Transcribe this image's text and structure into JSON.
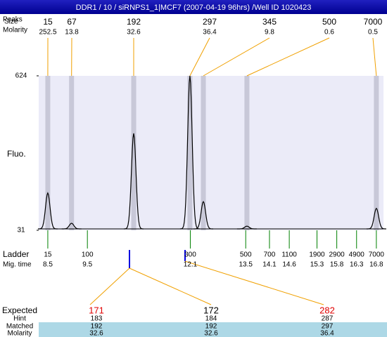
{
  "title": "DDR1 / 10 / siRNPS1_1|MCF7 (2007-04-19 96hrs) /Well ID 1020423",
  "row_labels": {
    "peaks": "Peaks",
    "size": "Size",
    "molarity": "Molarity",
    "fluo": "Fluo.",
    "ladder": "Ladder",
    "mig_time": "Mig. time"
  },
  "chart_data": {
    "type": "electropherogram",
    "ylim": [
      31,
      624
    ],
    "yticks": [
      31,
      624
    ],
    "xlim": [
      8.27,
      16.98
    ],
    "trace_color": "#000000",
    "band_color": "#c8c8d8",
    "line_color": "#f0a000",
    "ladder_color": "#008000",
    "plot_bg": "#ebebf8",
    "peaks": {
      "size": [
        15,
        67,
        192,
        297,
        345,
        500,
        7000
      ],
      "molarity": [
        252.5,
        13.8,
        32.6,
        36.4,
        9.8,
        0.6,
        0.5
      ],
      "mig_time": [
        8.5,
        9.1,
        10.67,
        12.09,
        12.43,
        13.53,
        16.8
      ],
      "fluo": [
        174,
        58,
        403,
        624,
        141,
        47,
        115
      ]
    },
    "ladder": {
      "size": [
        15,
        100,
        300,
        500,
        700,
        1100,
        1900,
        2900,
        4900,
        7000
      ],
      "mig_time": [
        8.5,
        9.5,
        12.1,
        13.5,
        14.1,
        14.6,
        15.3,
        15.8,
        16.3,
        16.8
      ]
    }
  },
  "expected_table": {
    "labels": {
      "expected": "Expected",
      "hint": "Hint",
      "matched": "Matched",
      "molarity": "Molarity"
    },
    "expected": [
      171,
      172,
      282
    ],
    "expected_colors": [
      "#e00000",
      "#000000",
      "#e00000"
    ],
    "hint": [
      183,
      184,
      287
    ],
    "matched": [
      192,
      192,
      297
    ],
    "molarity": [
      32.6,
      32.6,
      36.4
    ]
  }
}
